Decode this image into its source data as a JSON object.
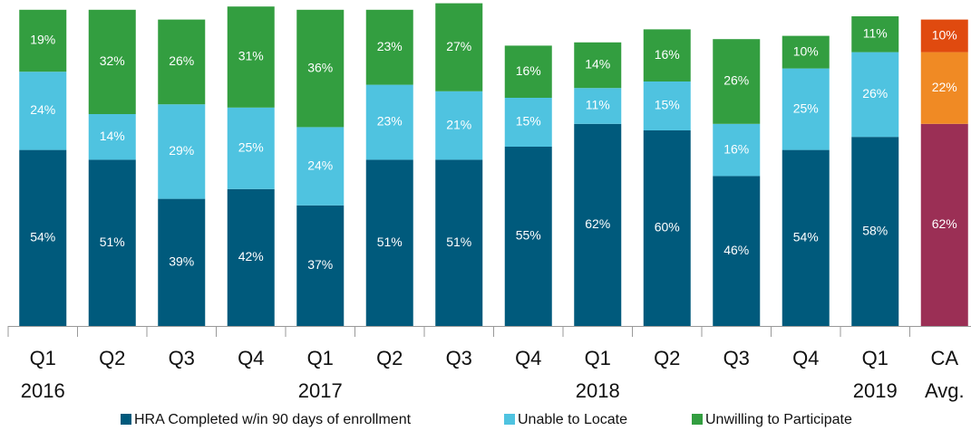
{
  "chart_data": {
    "type": "stacked_bar",
    "categories": [
      "Q1",
      "Q2",
      "Q3",
      "Q4",
      "Q1",
      "Q2",
      "Q3",
      "Q4",
      "Q1",
      "Q2",
      "Q3",
      "Q4",
      "Q1",
      "CA"
    ],
    "categories_line2": [
      "2016",
      null,
      null,
      null,
      "2017",
      null,
      null,
      null,
      "2018",
      null,
      null,
      null,
      "2019",
      "Avg."
    ],
    "series": [
      {
        "name": "HRA Completed w/in 90 days of enrollment",
        "color": "#005a7c",
        "colors": [
          "#005a7c",
          "#005a7c",
          "#005a7c",
          "#005a7c",
          "#005a7c",
          "#005a7c",
          "#005a7c",
          "#005a7c",
          "#005a7c",
          "#005a7c",
          "#005a7c",
          "#005a7c",
          "#005a7c",
          "#9b2f55"
        ],
        "values": [
          54,
          51,
          39,
          42,
          37,
          51,
          51,
          55,
          62,
          60,
          46,
          54,
          58,
          62
        ],
        "value_labels": [
          "54%",
          "51%",
          "39%",
          "42%",
          "37%",
          "51%",
          "51%",
          "55%",
          "62%",
          "60%",
          "46%",
          "54%",
          "58%",
          "62%"
        ]
      },
      {
        "name": "Unable to Locate",
        "color": "#4fc3e0",
        "colors": [
          "#4fc3e0",
          "#4fc3e0",
          "#4fc3e0",
          "#4fc3e0",
          "#4fc3e0",
          "#4fc3e0",
          "#4fc3e0",
          "#4fc3e0",
          "#4fc3e0",
          "#4fc3e0",
          "#4fc3e0",
          "#4fc3e0",
          "#4fc3e0",
          "#f08a24"
        ],
        "values": [
          24,
          14,
          29,
          25,
          24,
          23,
          21,
          15,
          11,
          15,
          16,
          25,
          26,
          22
        ],
        "value_labels": [
          "24%",
          "14%",
          "29%",
          "25%",
          "24%",
          "23%",
          "21%",
          "15%",
          "11%",
          "15%",
          "16%",
          "25%",
          "26%",
          "22%"
        ]
      },
      {
        "name": "Unwilling to Participate",
        "color": "#339e40",
        "colors": [
          "#339e40",
          "#339e40",
          "#339e40",
          "#339e40",
          "#339e40",
          "#339e40",
          "#339e40",
          "#339e40",
          "#339e40",
          "#339e40",
          "#339e40",
          "#339e40",
          "#339e40",
          "#e04a0f"
        ],
        "values": [
          19,
          32,
          26,
          31,
          36,
          23,
          27,
          16,
          14,
          16,
          26,
          10,
          11,
          10
        ],
        "value_labels": [
          "19%",
          "32%",
          "26%",
          "31%",
          "36%",
          "23%",
          "27%",
          "16%",
          "14%",
          "16%",
          "26%",
          "10%",
          "11%",
          "10%"
        ]
      }
    ]
  }
}
